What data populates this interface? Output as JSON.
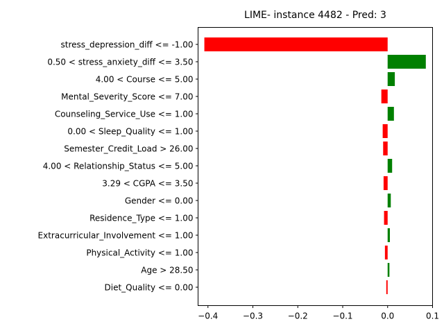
{
  "chart_data": {
    "type": "bar",
    "orientation": "horizontal",
    "title": "LIME- instance 4482 - Pred: 3",
    "xlabel": "",
    "ylabel": "",
    "xlim": [
      -0.422,
      0.1
    ],
    "xticks": [
      -0.4,
      -0.3,
      -0.2,
      -0.1,
      0.0,
      0.1
    ],
    "xtick_labels": [
      "−0.4",
      "−0.3",
      "−0.2",
      "−0.1",
      "0.0",
      "0.1"
    ],
    "grid": false,
    "positive_color": "#008000",
    "negative_color": "#ff0000",
    "categories": [
      "stress_depression_diff <= -1.00",
      "0.50 < stress_anxiety_diff <= 3.50",
      "4.00 < Course <= 5.00",
      "Mental_Severity_Score <= 7.00",
      "Counseling_Service_Use <= 1.00",
      "0.00 < Sleep_Quality <= 1.00",
      "Semester_Credit_Load > 26.00",
      "4.00 < Relationship_Status <= 5.00",
      "3.29 < CGPA <= 3.50",
      "Gender <= 0.00",
      "Residence_Type <= 1.00",
      "Extracurricular_Involvement <= 1.00",
      "Physical_Activity <= 1.00",
      "Age > 28.50",
      "Diet_Quality <= 0.00"
    ],
    "values": [
      -0.408,
      0.085,
      0.016,
      -0.014,
      0.014,
      -0.011,
      -0.01,
      0.01,
      -0.009,
      0.007,
      -0.008,
      0.005,
      -0.006,
      0.004,
      -0.003
    ]
  }
}
